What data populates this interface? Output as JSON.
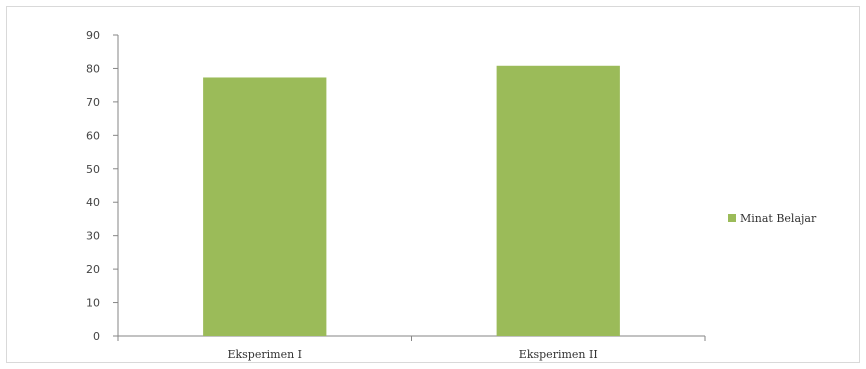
{
  "chart_data": {
    "type": "bar",
    "categories": [
      "Eksperimen I",
      "Eksperimen II"
    ],
    "series": [
      {
        "name": "Minat Belajar",
        "values": [
          77.3,
          80.8
        ]
      }
    ],
    "title": "",
    "xlabel": "",
    "ylabel": "",
    "ylim": [
      0,
      90
    ],
    "yticks": [
      0,
      10,
      20,
      30,
      40,
      50,
      60,
      70,
      80,
      90
    ],
    "grid": false,
    "legend": "right",
    "colors": {
      "bar": "#9bbb59",
      "axis": "#868686"
    }
  }
}
